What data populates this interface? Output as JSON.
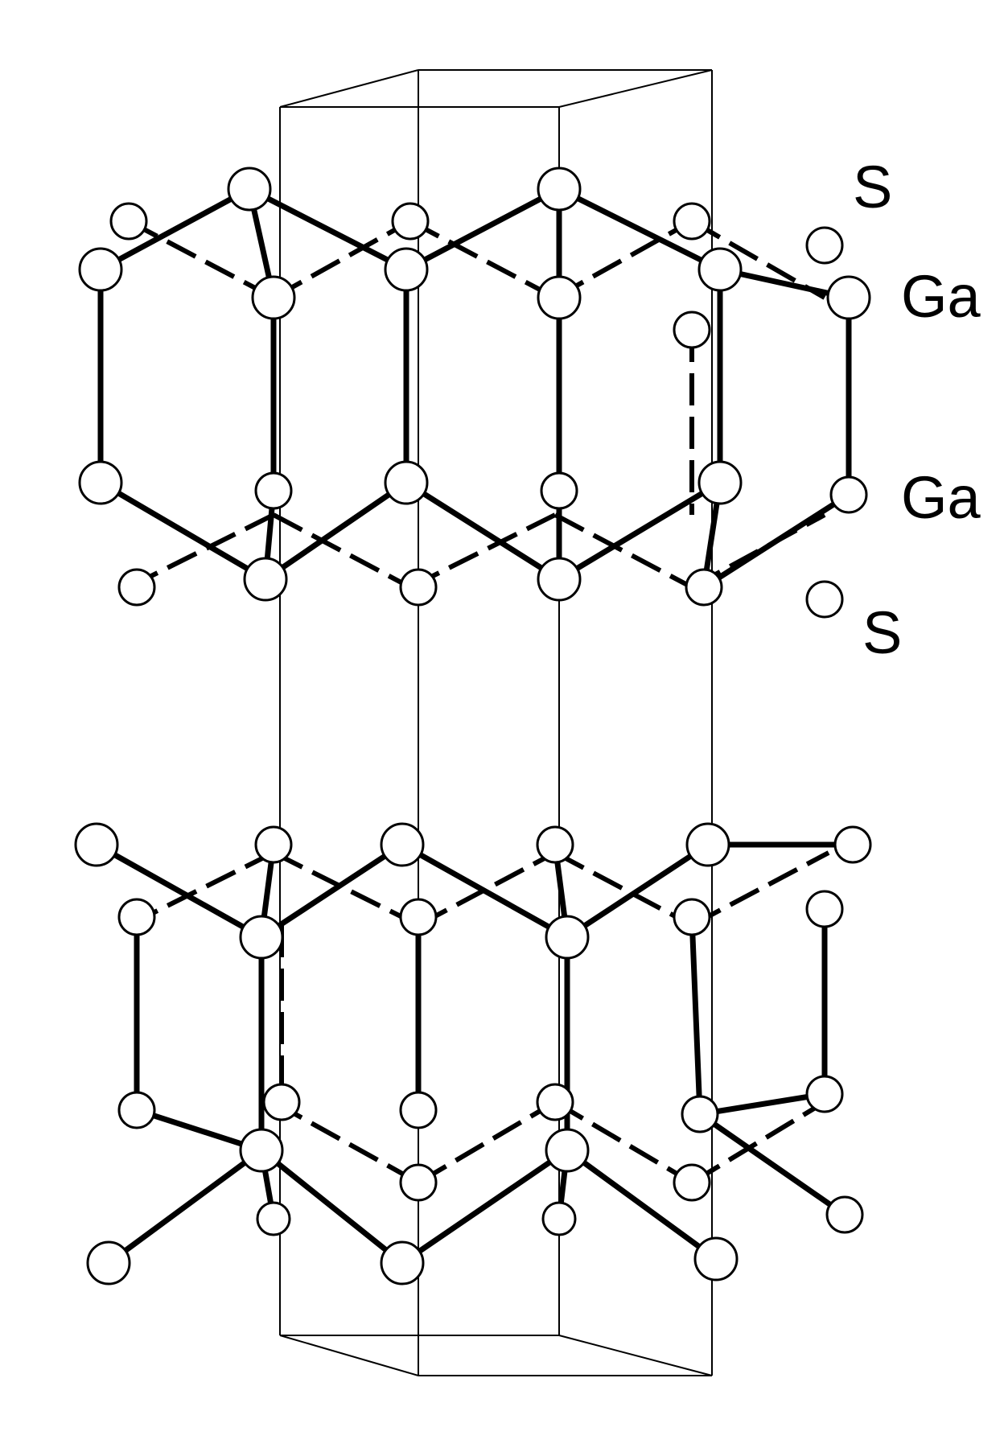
{
  "labels": {
    "s_top": "S",
    "ga_upper": "Ga",
    "ga_lower": "Ga",
    "s_bottom": "S"
  }
}
